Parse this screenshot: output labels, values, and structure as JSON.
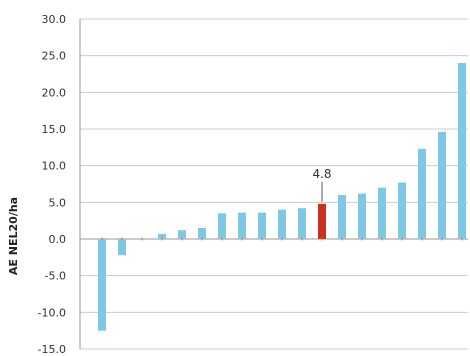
{
  "chart_data": {
    "type": "bar",
    "ylabel": "AE NEL20/ha",
    "ylim": [
      -15,
      30
    ],
    "yticks": [
      30,
      25,
      20,
      15,
      10,
      5,
      0,
      -5,
      -10,
      -15
    ],
    "ytick_labels": [
      "30.0",
      "25.0",
      "20.0",
      "15.0",
      "10.0",
      "5.0",
      "0.0",
      "-5.0",
      "-10.0",
      "-15.0"
    ],
    "grid": true,
    "values": [
      -12.5,
      -2.2,
      0.0,
      0.7,
      1.2,
      1.5,
      3.5,
      3.6,
      3.6,
      4.0,
      4.2,
      4.8,
      6.0,
      6.2,
      7.0,
      7.7,
      12.3,
      14.6,
      24.0
    ],
    "highlight_index": 11,
    "annotation": {
      "index": 11,
      "text": "4.8"
    },
    "colors": {
      "bar": "#7ec8e6",
      "highlight": "#c8321e",
      "grid": "#cccccc",
      "axis": "#999999",
      "tick_marks": "#e07050"
    }
  }
}
